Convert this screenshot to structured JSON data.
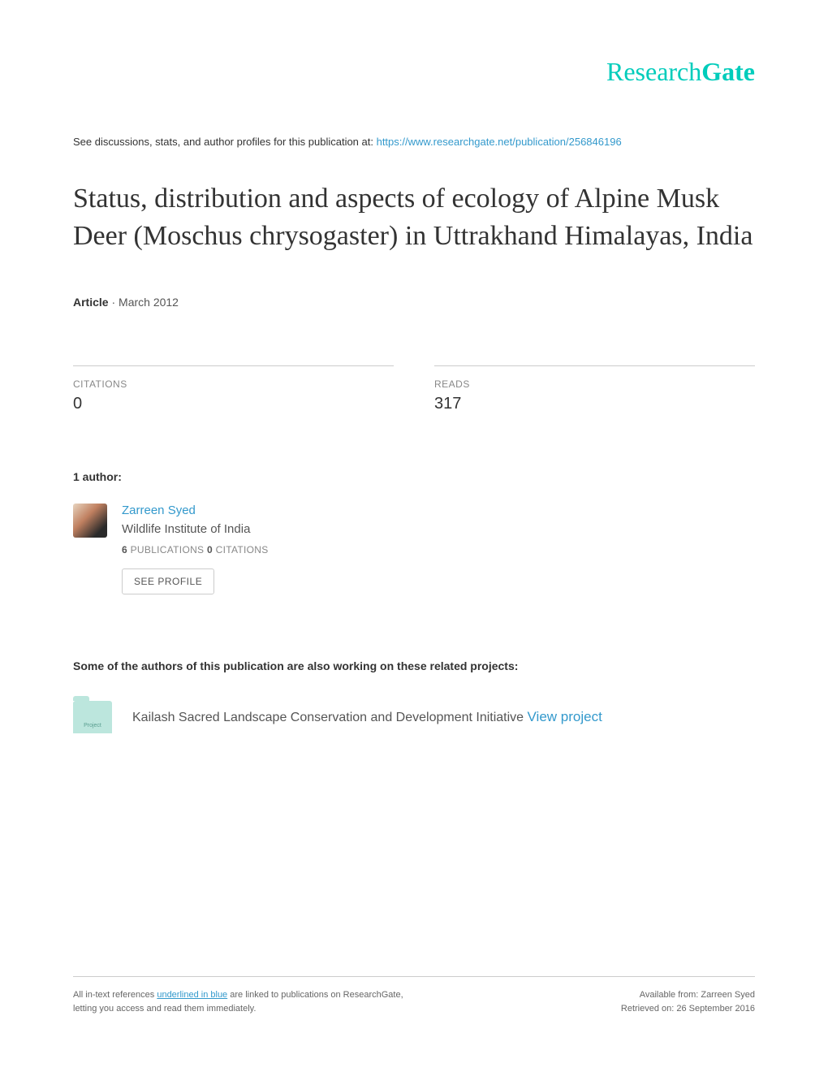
{
  "logo": {
    "part1": "Research",
    "part2": "Gate"
  },
  "intro": {
    "text": "See discussions, stats, and author profiles for this publication at: ",
    "link": "https://www.researchgate.net/publication/256846196"
  },
  "title": "Status, distribution and aspects of ecology of Alpine Musk Deer (Moschus chrysogaster) in Uttrakhand Himalayas, India",
  "meta": {
    "type": "Article",
    "separator": " · ",
    "date": "March 2012"
  },
  "stats": {
    "citations": {
      "label": "CITATIONS",
      "value": "0"
    },
    "reads": {
      "label": "READS",
      "value": "317"
    }
  },
  "authors_heading": "1 author:",
  "author": {
    "name": "Zarreen Syed",
    "affiliation": "Wildlife Institute of India",
    "publications_count": "6",
    "publications_label": " PUBLICATIONS   ",
    "citations_count": "0",
    "citations_label": " CITATIONS",
    "see_profile": "SEE PROFILE"
  },
  "related_heading": "Some of the authors of this publication are also working on these related projects:",
  "project": {
    "icon_label": "Project",
    "text": "Kailash Sacred Landscape Conservation and Development Initiative ",
    "link_text": "View project"
  },
  "footer": {
    "left_1": "All in-text references ",
    "left_2": "underlined in blue",
    "left_3": " are linked to publications on ResearchGate,",
    "left_4": "letting you access and read them immediately.",
    "right_1": "Available from: Zarreen Syed",
    "right_2": "Retrieved on: 26 September 2016"
  }
}
